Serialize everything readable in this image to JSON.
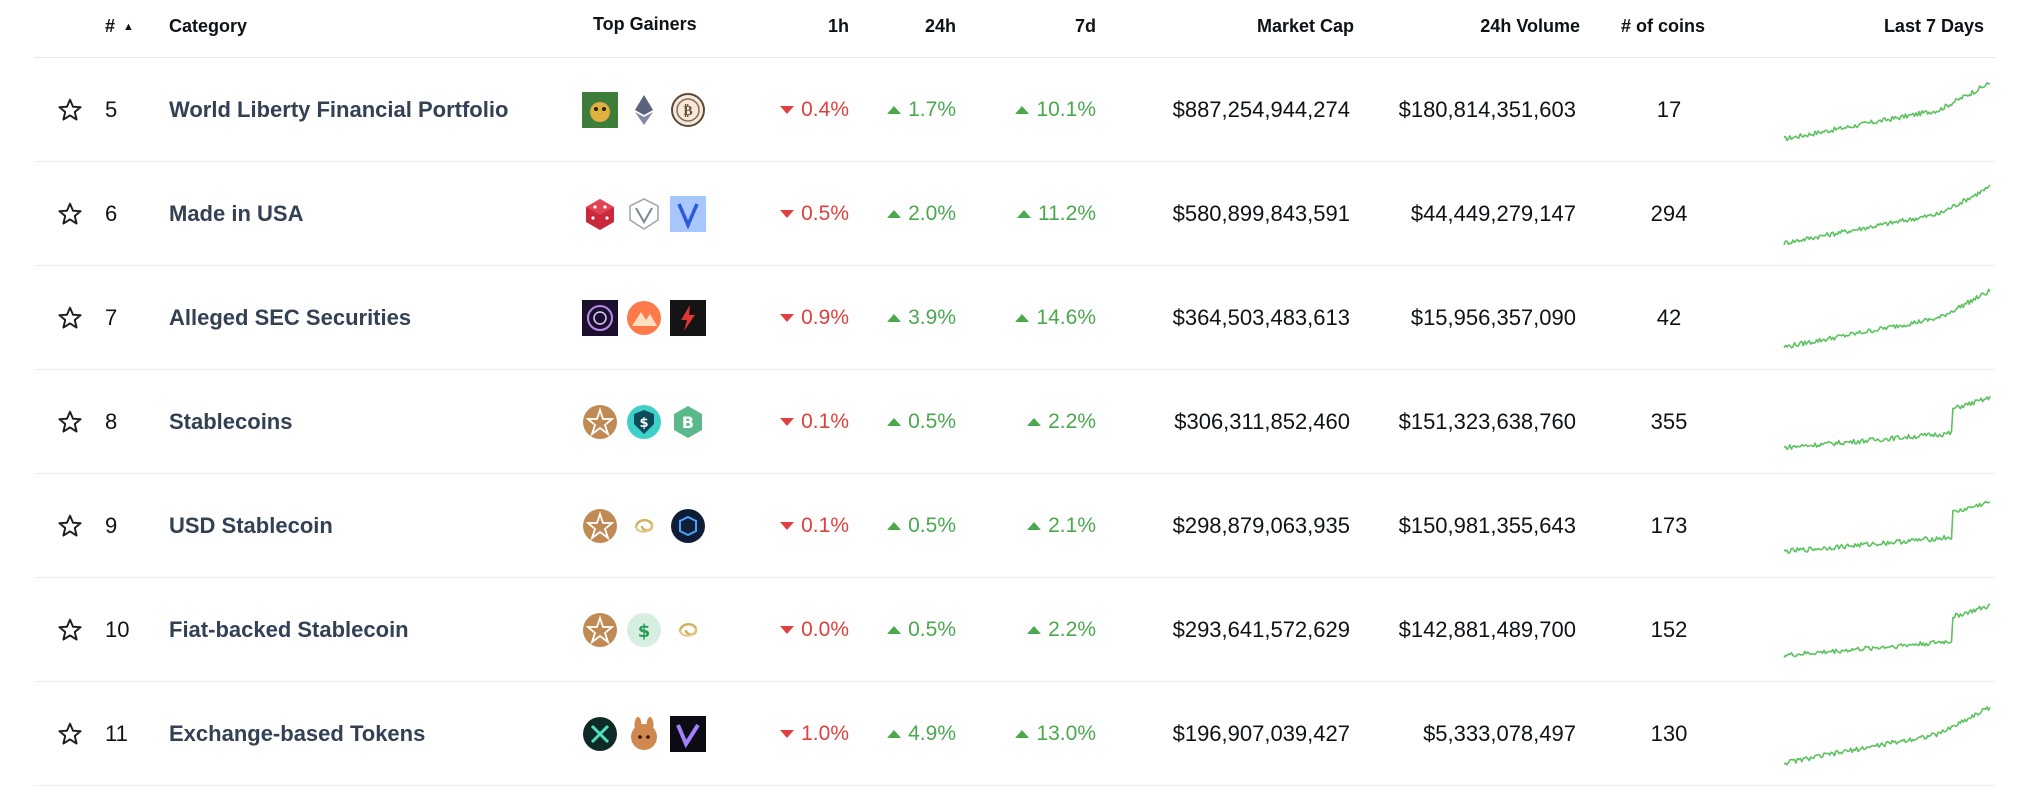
{
  "colors": {
    "up": "#4aa94e",
    "down": "#e0403f",
    "spark": "#5cc35e",
    "text": "#0d1217",
    "name": "#334155"
  },
  "header": {
    "rank": "#",
    "sort_indicator": "▲",
    "category": "Category",
    "top_gainers": "Top Gainers",
    "h1": "1h",
    "h24": "24h",
    "d7": "7d",
    "market_cap": "Market Cap",
    "volume": "24h Volume",
    "num_coins": "# of coins",
    "last7": "Last 7 Days"
  },
  "rows": [
    {
      "rank": "5",
      "name": "World Liberty Financial Portfolio",
      "gainers": [
        "dog-coin-icon",
        "ethereum-icon",
        "bitcoin-icon"
      ],
      "h1": "0.4%",
      "h1_dir": "down",
      "h24": "1.7%",
      "h24_dir": "up",
      "d7": "10.1%",
      "d7_dir": "up",
      "market_cap": "$887,254,944,274",
      "volume": "$180,814,351,603",
      "coins": "17",
      "trend": "steady"
    },
    {
      "rank": "6",
      "name": "Made in USA",
      "gainers": [
        "red-cube-icon",
        "shield-v-icon",
        "v-token-icon"
      ],
      "h1": "0.5%",
      "h1_dir": "down",
      "h24": "2.0%",
      "h24_dir": "up",
      "d7": "11.2%",
      "d7_dir": "up",
      "market_cap": "$580,899,843,591",
      "volume": "$44,449,279,147",
      "coins": "294",
      "trend": "steady"
    },
    {
      "rank": "7",
      "name": "Alleged SEC Securities",
      "gainers": [
        "purple-ring-icon",
        "orange-peak-icon",
        "lightning-icon"
      ],
      "h1": "0.9%",
      "h1_dir": "down",
      "h24": "3.9%",
      "h24_dir": "up",
      "d7": "14.6%",
      "d7_dir": "up",
      "market_cap": "$364,503,483,613",
      "volume": "$15,956,357,090",
      "coins": "42",
      "trend": "steady"
    },
    {
      "rank": "8",
      "name": "Stablecoins",
      "gainers": [
        "bronze-star-icon",
        "dollar-shield-icon",
        "green-b-icon"
      ],
      "h1": "0.1%",
      "h1_dir": "down",
      "h24": "0.5%",
      "h24_dir": "up",
      "d7": "2.2%",
      "d7_dir": "up",
      "market_cap": "$306,311,852,460",
      "volume": "$151,323,638,760",
      "coins": "355",
      "trend": "jump"
    },
    {
      "rank": "9",
      "name": "USD Stablecoin",
      "gainers": [
        "bronze-star-icon",
        "gold-swirl-icon",
        "blue-cube-icon"
      ],
      "h1": "0.1%",
      "h1_dir": "down",
      "h24": "0.5%",
      "h24_dir": "up",
      "d7": "2.1%",
      "d7_dir": "up",
      "market_cap": "$298,879,063,935",
      "volume": "$150,981,355,643",
      "coins": "173",
      "trend": "jump"
    },
    {
      "rank": "10",
      "name": "Fiat-backed Stablecoin",
      "gainers": [
        "bronze-star-icon",
        "green-dollar-icon",
        "gold-swirl-icon"
      ],
      "h1": "0.0%",
      "h1_dir": "down",
      "h24": "0.5%",
      "h24_dir": "up",
      "d7": "2.2%",
      "d7_dir": "up",
      "market_cap": "$293,641,572,629",
      "volume": "$142,881,489,700",
      "coins": "152",
      "trend": "jump"
    },
    {
      "rank": "11",
      "name": "Exchange-based Tokens",
      "gainers": [
        "x-token-icon",
        "bunny-icon",
        "purple-v-icon"
      ],
      "h1": "1.0%",
      "h1_dir": "down",
      "h24": "4.9%",
      "h24_dir": "up",
      "d7": "13.0%",
      "d7_dir": "up",
      "market_cap": "$196,907,039,427",
      "volume": "$5,333,078,497",
      "coins": "130",
      "trend": "steady"
    }
  ]
}
